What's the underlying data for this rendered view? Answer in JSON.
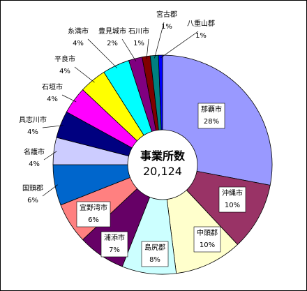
{
  "chart_data": {
    "type": "pie",
    "donut": true,
    "center_title": "事業所数",
    "center_value": "20,124",
    "slices": [
      {
        "name": "那覇市",
        "percent_label": "28%",
        "value": 28,
        "color": "#9999ff"
      },
      {
        "name": "沖縄市",
        "percent_label": "10%",
        "value": 10,
        "color": "#993366"
      },
      {
        "name": "中頭郡",
        "percent_label": "10%",
        "value": 10,
        "color": "#ffffcc"
      },
      {
        "name": "島尻郡",
        "percent_label": "8%",
        "value": 8,
        "color": "#ccffff"
      },
      {
        "name": "浦添市",
        "percent_label": "7%",
        "value": 7,
        "color": "#660066"
      },
      {
        "name": "宜野湾市",
        "percent_label": "6%",
        "value": 6,
        "color": "#ff8080"
      },
      {
        "name": "国頭郡",
        "percent_label": "6%",
        "value": 6,
        "color": "#0066cc"
      },
      {
        "name": "名護市",
        "percent_label": "4%",
        "value": 4,
        "color": "#ccccff"
      },
      {
        "name": "具志川市",
        "percent_label": "4%",
        "value": 4,
        "color": "#000080"
      },
      {
        "name": "石垣市",
        "percent_label": "4%",
        "value": 4,
        "color": "#ff00ff"
      },
      {
        "name": "平良市",
        "percent_label": "4%",
        "value": 4,
        "color": "#ffff00"
      },
      {
        "name": "糸満市",
        "percent_label": "4%",
        "value": 4,
        "color": "#00ffff"
      },
      {
        "name": "豊見城市",
        "percent_label": "2%",
        "value": 2,
        "color": "#800080"
      },
      {
        "name": "石川市",
        "percent_label": "1%",
        "value": 1.2,
        "color": "#800000"
      },
      {
        "name": "宮古郡",
        "percent_label": "1%",
        "value": 1.2,
        "color": "#008080"
      },
      {
        "name": "八重山郡",
        "percent_label": "1%",
        "value": 0.6,
        "color": "#0000ff"
      }
    ]
  }
}
